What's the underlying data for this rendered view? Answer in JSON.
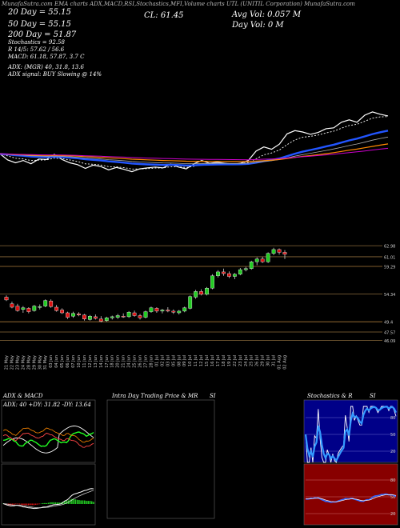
{
  "header": {
    "line1": "MunafaSutra.com EMA charts ADX,MACD,RSI,Stochastics,MFI,Volume charts UTL (UNITIL Corporation) MunafaSutra.com",
    "ema20": "20 Day = 55.15",
    "ema50": "50 Day = 55.15",
    "ema200": "200 Day = 51.87",
    "stoch": "Stochastics = 92.58",
    "r": "R 14/5: 57.62 / 56.6",
    "macd": "MACD: 61.18, 57.87, 3.7 C",
    "cl": "CL: 61.45",
    "avgvol": "Avg Vol: 0.057 M",
    "dayvol": "Day Vol: 0  M",
    "adx": "ADX:                    (MGR) 40, 31.8, 13.6",
    "adxsignal": "ADX signal:                     BUY Slowing @ 14%"
  },
  "price_axis": {
    "labels": [
      "62.98",
      "61.01",
      "59.29",
      "54.34",
      "49.4",
      "47.57",
      "46.09"
    ]
  },
  "panels": {
    "adx_title": "ADX & MACD",
    "adx_label": "ADX: 40  +DY: 31.82  -DY: 13.64",
    "intraday_title": "Intra Day Trading Price & MR",
    "intraday_si": "SI",
    "stoch_title": "Stochastics & R",
    "stoch_si": "SI",
    "stoch_ticks": [
      "80",
      "50",
      "20"
    ],
    "rsi_ticks": [
      "80",
      "50",
      "20"
    ]
  },
  "colors": {
    "up": "#22cc22",
    "down": "#dd1111",
    "ema20": "#ffffff",
    "ema50": "#2255ff",
    "ema100": "#aaaaaa",
    "ema200": "#ff8800",
    "ema_purple": "#cc00cc",
    "stoch_bg": "#000088",
    "rsi_bg": "#880000"
  },
  "chart_data": {
    "type": "candlestick",
    "dates": [
      "21 May",
      "22 May",
      "23 May",
      "24 May",
      "28 May",
      "29 May",
      "30 May",
      "31 May",
      "03 Jun",
      "04 Jun",
      "05 Jun",
      "06 Jun",
      "07 Jun",
      "10 Jun",
      "11 Jun",
      "12 Jun",
      "13 Jun",
      "14 Jun",
      "17 Jun",
      "18 Jun",
      "20 Jun",
      "21 Jun",
      "24 Jun",
      "25 Jun",
      "26 Jun",
      "27 Jun",
      "28 Jun",
      "01 Jul",
      "02 Jul",
      "03 Jul",
      "05 Jul",
      "08 Jul",
      "09 Jul",
      "10 Jul",
      "11 Jul",
      "12 Jul",
      "15 Jul",
      "16 Jul",
      "17 Jul",
      "18 Jul",
      "19 Jul",
      "22 Jul",
      "23 Jul",
      "24 Jul",
      "25 Jul",
      "26 Jul",
      "29 Jul",
      "30 Jul",
      "31 Jul",
      "01 Aug",
      "02 Aug"
    ],
    "ohlc": [
      [
        53.8,
        54.1,
        53.1,
        53.3
      ],
      [
        52.6,
        53.0,
        51.8,
        52.0
      ],
      [
        52.2,
        52.6,
        51.2,
        51.4
      ],
      [
        51.6,
        52.2,
        51.0,
        51.9
      ],
      [
        51.8,
        52.0,
        50.9,
        51.2
      ],
      [
        51.4,
        52.4,
        51.2,
        52.2
      ],
      [
        52.0,
        52.5,
        51.6,
        52.1
      ],
      [
        52.2,
        53.4,
        52.0,
        53.2
      ],
      [
        53.1,
        53.4,
        51.9,
        52.1
      ],
      [
        52.0,
        52.4,
        51.2,
        51.4
      ],
      [
        51.5,
        51.8,
        50.8,
        51.0
      ],
      [
        51.0,
        51.2,
        49.9,
        50.2
      ],
      [
        50.4,
        51.2,
        50.1,
        50.9
      ],
      [
        50.8,
        51.1,
        50.4,
        50.6
      ],
      [
        50.6,
        50.8,
        49.6,
        49.9
      ],
      [
        49.8,
        50.6,
        49.6,
        50.4
      ],
      [
        50.3,
        50.7,
        49.8,
        50.0
      ],
      [
        49.9,
        50.4,
        49.3,
        49.5
      ],
      [
        49.6,
        50.3,
        49.4,
        50.1
      ],
      [
        50.1,
        50.5,
        49.8,
        50.3
      ],
      [
        50.2,
        50.8,
        49.9,
        50.5
      ],
      [
        50.4,
        50.9,
        50.1,
        50.3
      ],
      [
        50.3,
        51.3,
        50.1,
        51.1
      ],
      [
        51.0,
        51.4,
        50.3,
        50.5
      ],
      [
        50.5,
        50.8,
        49.8,
        50.1
      ],
      [
        50.2,
        51.4,
        50.0,
        51.2
      ],
      [
        51.2,
        52.1,
        51.0,
        51.9
      ],
      [
        51.8,
        52.0,
        51.0,
        51.3
      ],
      [
        51.3,
        51.7,
        50.9,
        51.5
      ],
      [
        51.5,
        52.0,
        51.1,
        51.3
      ],
      [
        51.3,
        51.6,
        50.8,
        51.1
      ],
      [
        51.0,
        51.5,
        50.7,
        51.3
      ],
      [
        51.3,
        52.1,
        51.1,
        51.9
      ],
      [
        51.8,
        54.1,
        51.6,
        53.9
      ],
      [
        53.8,
        55.1,
        53.5,
        54.8
      ],
      [
        54.8,
        55.2,
        54.1,
        54.3
      ],
      [
        54.3,
        55.6,
        54.1,
        55.4
      ],
      [
        55.4,
        57.9,
        55.2,
        57.6
      ],
      [
        57.6,
        58.6,
        57.3,
        58.3
      ],
      [
        58.3,
        58.9,
        57.6,
        58.0
      ],
      [
        58.0,
        58.4,
        57.2,
        57.5
      ],
      [
        57.5,
        58.1,
        57.0,
        57.9
      ],
      [
        57.9,
        59.0,
        57.7,
        58.7
      ],
      [
        58.7,
        59.2,
        58.4,
        58.9
      ],
      [
        58.9,
        60.3,
        58.7,
        60.1
      ],
      [
        60.1,
        60.9,
        59.5,
        60.6
      ],
      [
        60.6,
        61.0,
        59.9,
        60.1
      ],
      [
        60.1,
        61.8,
        59.9,
        61.6
      ],
      [
        61.6,
        62.6,
        61.3,
        62.3
      ],
      [
        62.3,
        62.5,
        61.4,
        61.8
      ],
      [
        61.8,
        62.2,
        60.6,
        61.45
      ]
    ],
    "ema_lines": [
      {
        "name": "20 Day",
        "color": "#ffffff"
      },
      {
        "name": "50 Day",
        "color": "#2255ff"
      },
      {
        "name": "200 Day",
        "color": "#ff8800"
      }
    ],
    "ylim": [
      44,
      64
    ],
    "adx": 40,
    "plus_di": 31.82,
    "minus_di": 13.64,
    "stochastics": 92.58
  }
}
